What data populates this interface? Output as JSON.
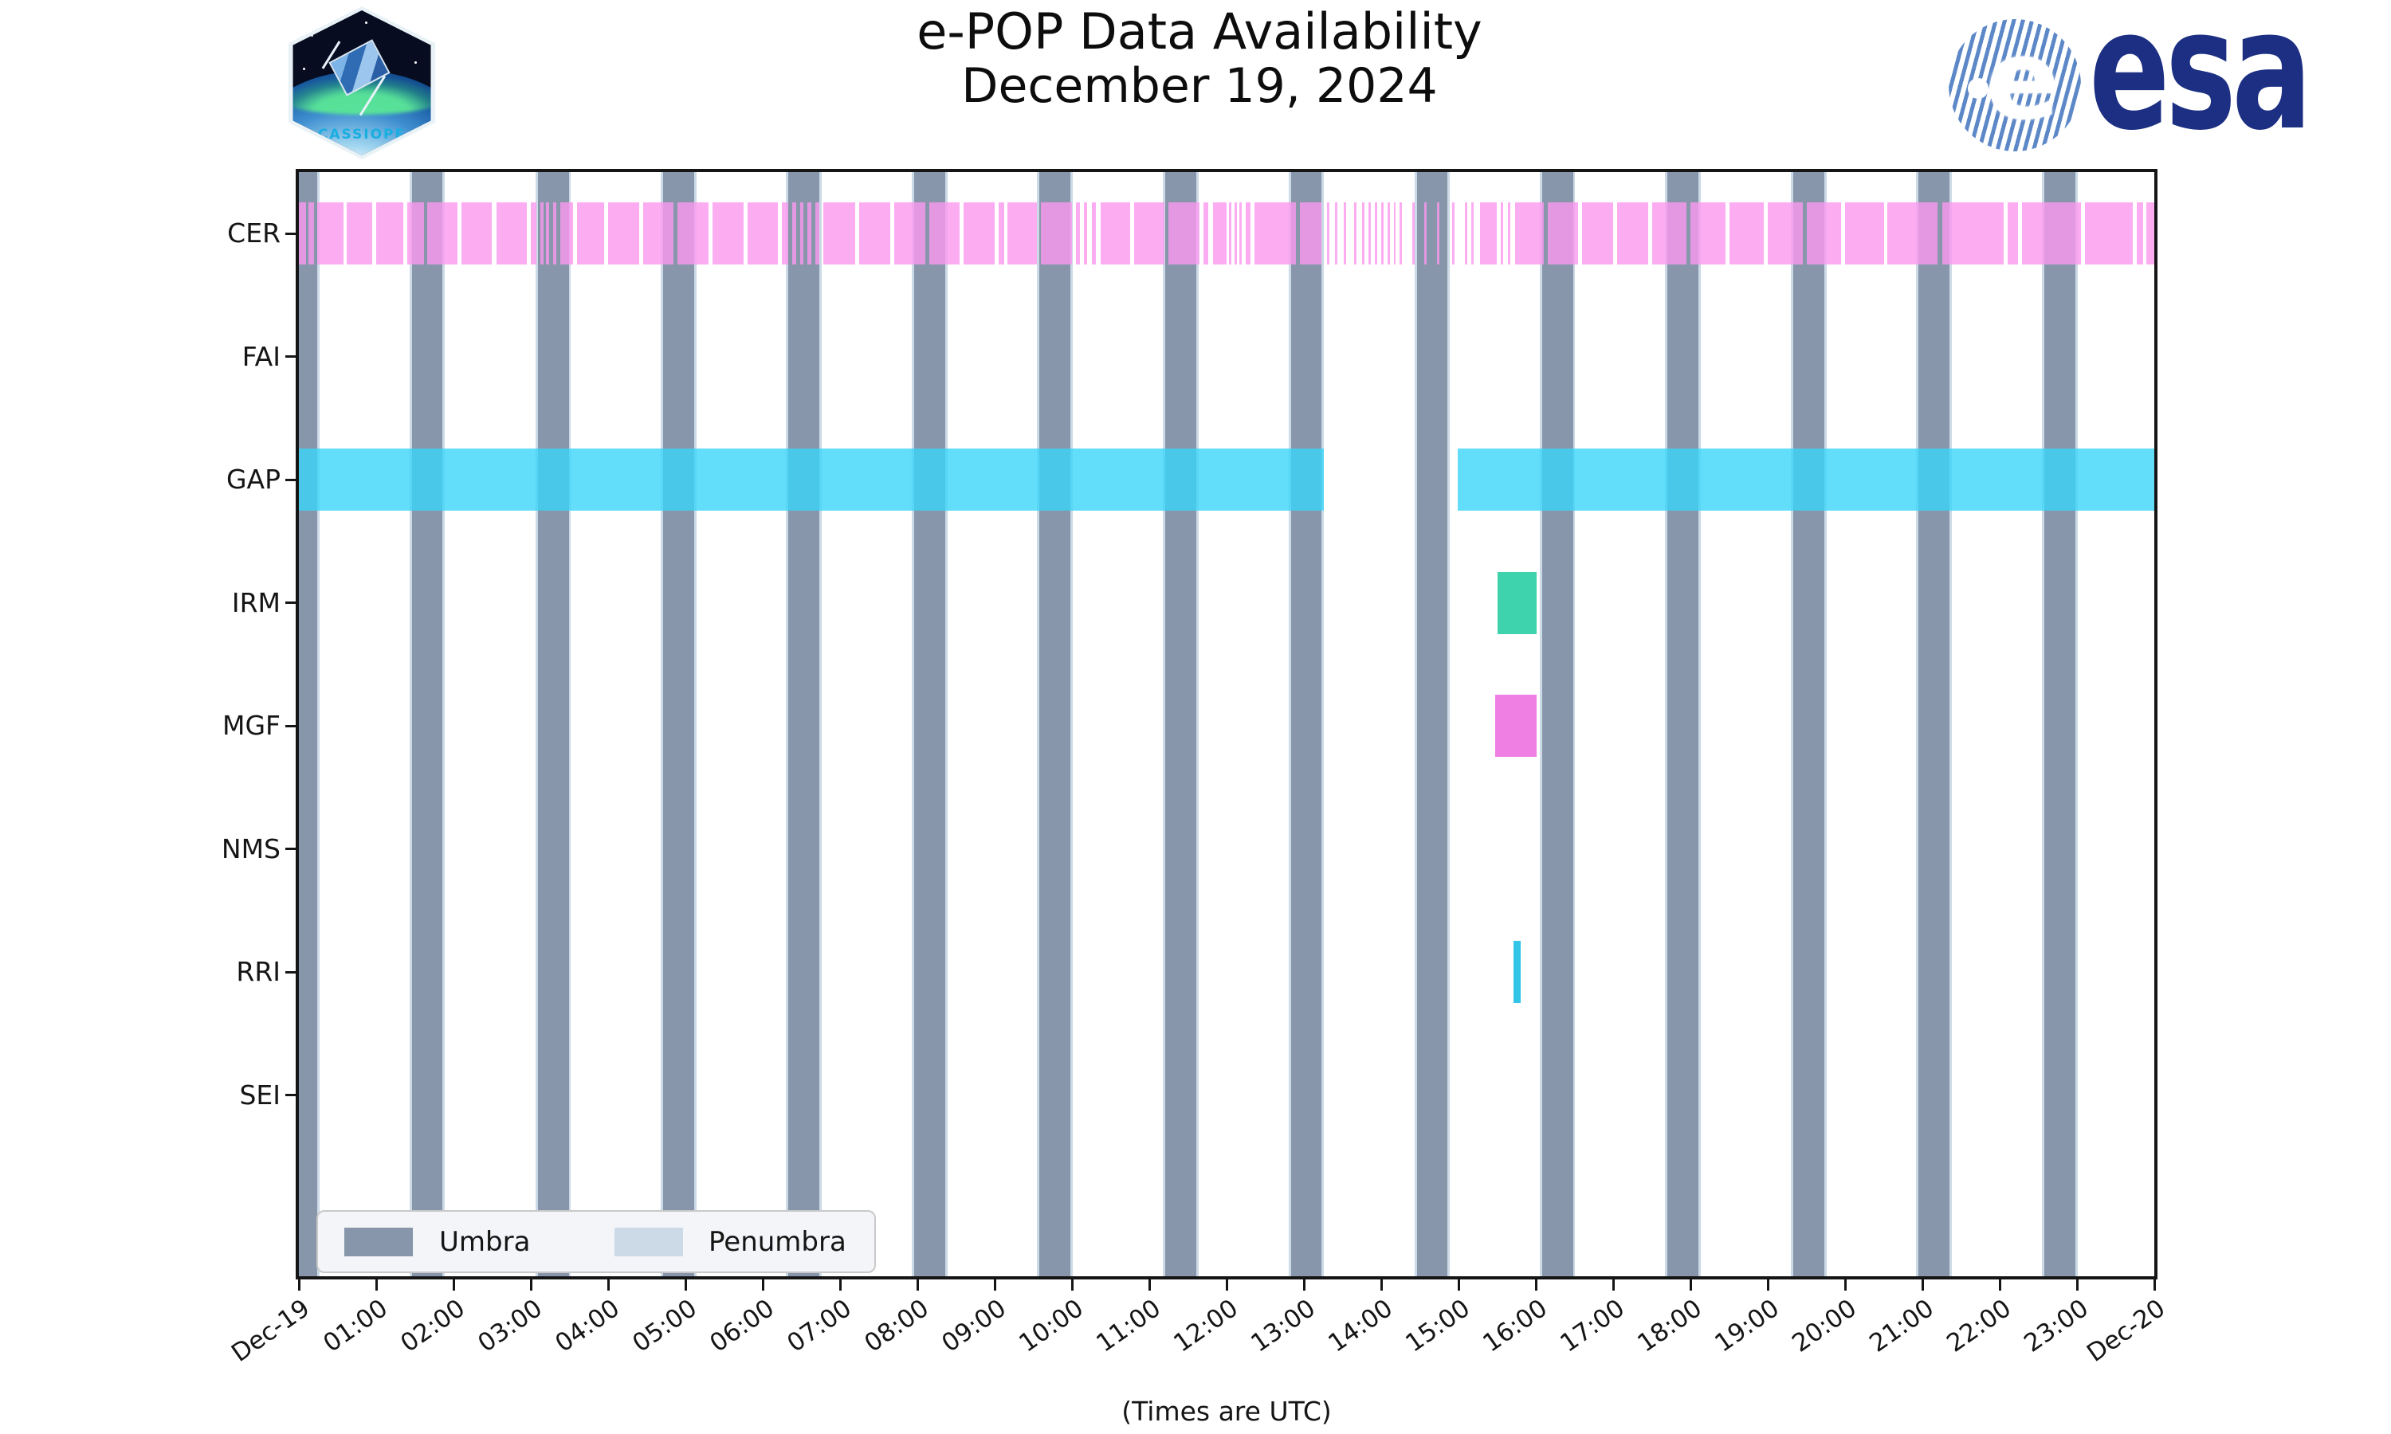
{
  "header": {
    "title_line1": "e-POP Data Availability",
    "title_line2": "December 19, 2024",
    "cassiope_patch_label": "CASSIOPE",
    "esa_wordmark": "esa",
    "esa_emblem_letter": "e"
  },
  "chart_data": {
    "type": "gantt-availability",
    "title": "e-POP Data Availability December 19, 2024",
    "xlabel": "(Times are UTC)",
    "x_axis": {
      "hours_span": 24,
      "tick_labels": [
        "Dec-19",
        "01:00",
        "02:00",
        "03:00",
        "04:00",
        "05:00",
        "06:00",
        "07:00",
        "08:00",
        "09:00",
        "10:00",
        "11:00",
        "12:00",
        "13:00",
        "14:00",
        "15:00",
        "16:00",
        "17:00",
        "18:00",
        "19:00",
        "20:00",
        "21:00",
        "22:00",
        "23:00",
        "Dec-20"
      ]
    },
    "instruments": [
      "CER",
      "FAI",
      "GAP",
      "IRM",
      "MGF",
      "NMS",
      "RRI",
      "SEI"
    ],
    "series": [
      {
        "name": "CER",
        "color": "rgba(251,152,239,0.8)",
        "segments": [
          [
            0.0,
            0.09
          ],
          [
            0.12,
            0.2
          ],
          [
            0.24,
            0.58
          ],
          [
            0.62,
            0.95
          ],
          [
            1.0,
            1.35
          ],
          [
            1.4,
            1.62
          ],
          [
            1.66,
            2.05
          ],
          [
            2.1,
            2.5
          ],
          [
            2.56,
            2.95
          ],
          [
            3.0,
            3.07
          ],
          [
            3.12,
            3.16
          ],
          [
            3.2,
            3.24
          ],
          [
            3.29,
            3.33
          ],
          [
            3.38,
            3.55
          ],
          [
            3.6,
            3.95
          ],
          [
            4.0,
            4.4
          ],
          [
            4.45,
            4.85
          ],
          [
            4.9,
            5.3
          ],
          [
            5.35,
            5.75
          ],
          [
            5.8,
            6.2
          ],
          [
            6.25,
            6.33
          ],
          [
            6.38,
            6.43
          ],
          [
            6.48,
            6.53
          ],
          [
            6.58,
            6.63
          ],
          [
            6.68,
            6.73
          ],
          [
            6.78,
            7.2
          ],
          [
            7.25,
            7.65
          ],
          [
            7.7,
            8.1
          ],
          [
            8.15,
            8.55
          ],
          [
            8.6,
            9.0
          ],
          [
            9.05,
            9.12
          ],
          [
            9.17,
            9.55
          ],
          [
            9.6,
            10.0
          ],
          [
            10.05,
            10.1
          ],
          [
            10.15,
            10.2
          ],
          [
            10.26,
            10.31
          ],
          [
            10.37,
            10.75
          ],
          [
            10.8,
            11.2
          ],
          [
            11.25,
            11.65
          ],
          [
            11.7,
            11.76
          ],
          [
            11.82,
            12.0
          ],
          [
            12.03,
            12.06
          ],
          [
            12.1,
            12.13
          ],
          [
            12.17,
            12.2
          ],
          [
            12.25,
            12.31
          ],
          [
            12.36,
            12.9
          ],
          [
            12.95,
            13.23
          ],
          [
            13.3,
            13.33
          ],
          [
            13.4,
            13.43
          ],
          [
            13.52,
            13.55
          ],
          [
            13.65,
            13.68
          ],
          [
            13.75,
            13.78
          ],
          [
            13.84,
            13.87
          ],
          [
            13.92,
            13.95
          ],
          [
            14.0,
            14.03
          ],
          [
            14.08,
            14.11
          ],
          [
            14.16,
            14.19
          ],
          [
            14.24,
            14.27
          ],
          [
            14.4,
            14.43
          ],
          [
            14.56,
            14.59
          ],
          [
            14.72,
            14.75
          ],
          [
            14.92,
            14.95
          ],
          [
            15.08,
            15.11
          ],
          [
            15.17,
            15.2
          ],
          [
            15.28,
            15.5
          ],
          [
            15.55,
            15.58
          ],
          [
            15.64,
            15.67
          ],
          [
            15.73,
            16.1
          ],
          [
            16.15,
            16.55
          ],
          [
            16.6,
            17.0
          ],
          [
            17.05,
            17.45
          ],
          [
            17.5,
            17.95
          ],
          [
            18.0,
            18.45
          ],
          [
            18.5,
            18.95
          ],
          [
            19.0,
            19.45
          ],
          [
            19.5,
            19.95
          ],
          [
            20.0,
            20.5
          ],
          [
            20.55,
            21.2
          ],
          [
            21.26,
            22.05
          ],
          [
            22.1,
            22.24
          ],
          [
            22.29,
            23.05
          ],
          [
            23.1,
            23.72
          ],
          [
            23.77,
            23.86
          ],
          [
            23.9,
            24.0
          ]
        ]
      },
      {
        "name": "FAI",
        "color": "rgba(255,170,80,0.8)",
        "segments": []
      },
      {
        "name": "GAP",
        "color": "rgba(59,212,249,0.8)",
        "segments": [
          [
            0.0,
            13.26
          ],
          [
            14.99,
            24.0
          ]
        ]
      },
      {
        "name": "IRM",
        "color": "rgba(14,200,151,0.8)",
        "segments": [
          [
            15.5,
            16.01
          ]
        ]
      },
      {
        "name": "MGF",
        "color": "rgba(235,95,220,0.8)",
        "segments": [
          [
            15.47,
            16.01
          ]
        ]
      },
      {
        "name": "NMS",
        "color": "rgba(150,150,150,0.8)",
        "segments": []
      },
      {
        "name": "RRI",
        "color": "rgba(0,183,226,0.8)",
        "segments": [
          [
            15.71,
            15.8
          ]
        ]
      },
      {
        "name": "SEI",
        "color": "rgba(150,150,150,0.8)",
        "segments": []
      }
    ],
    "umbra": {
      "color": "#8796aa",
      "centers_hours": [
        0.04,
        1.66,
        3.29,
        4.91,
        6.53,
        8.16,
        9.78,
        11.41,
        13.03,
        14.66,
        16.28,
        17.9,
        19.53,
        21.15,
        22.78
      ],
      "width_hours": 0.4
    },
    "penumbra": {
      "color": "#ccd9e6",
      "width_hours": 0.46
    },
    "legend": [
      {
        "label": "Umbra",
        "color": "#8796aa"
      },
      {
        "label": "Penumbra",
        "color": "#ccd9e6"
      }
    ]
  }
}
